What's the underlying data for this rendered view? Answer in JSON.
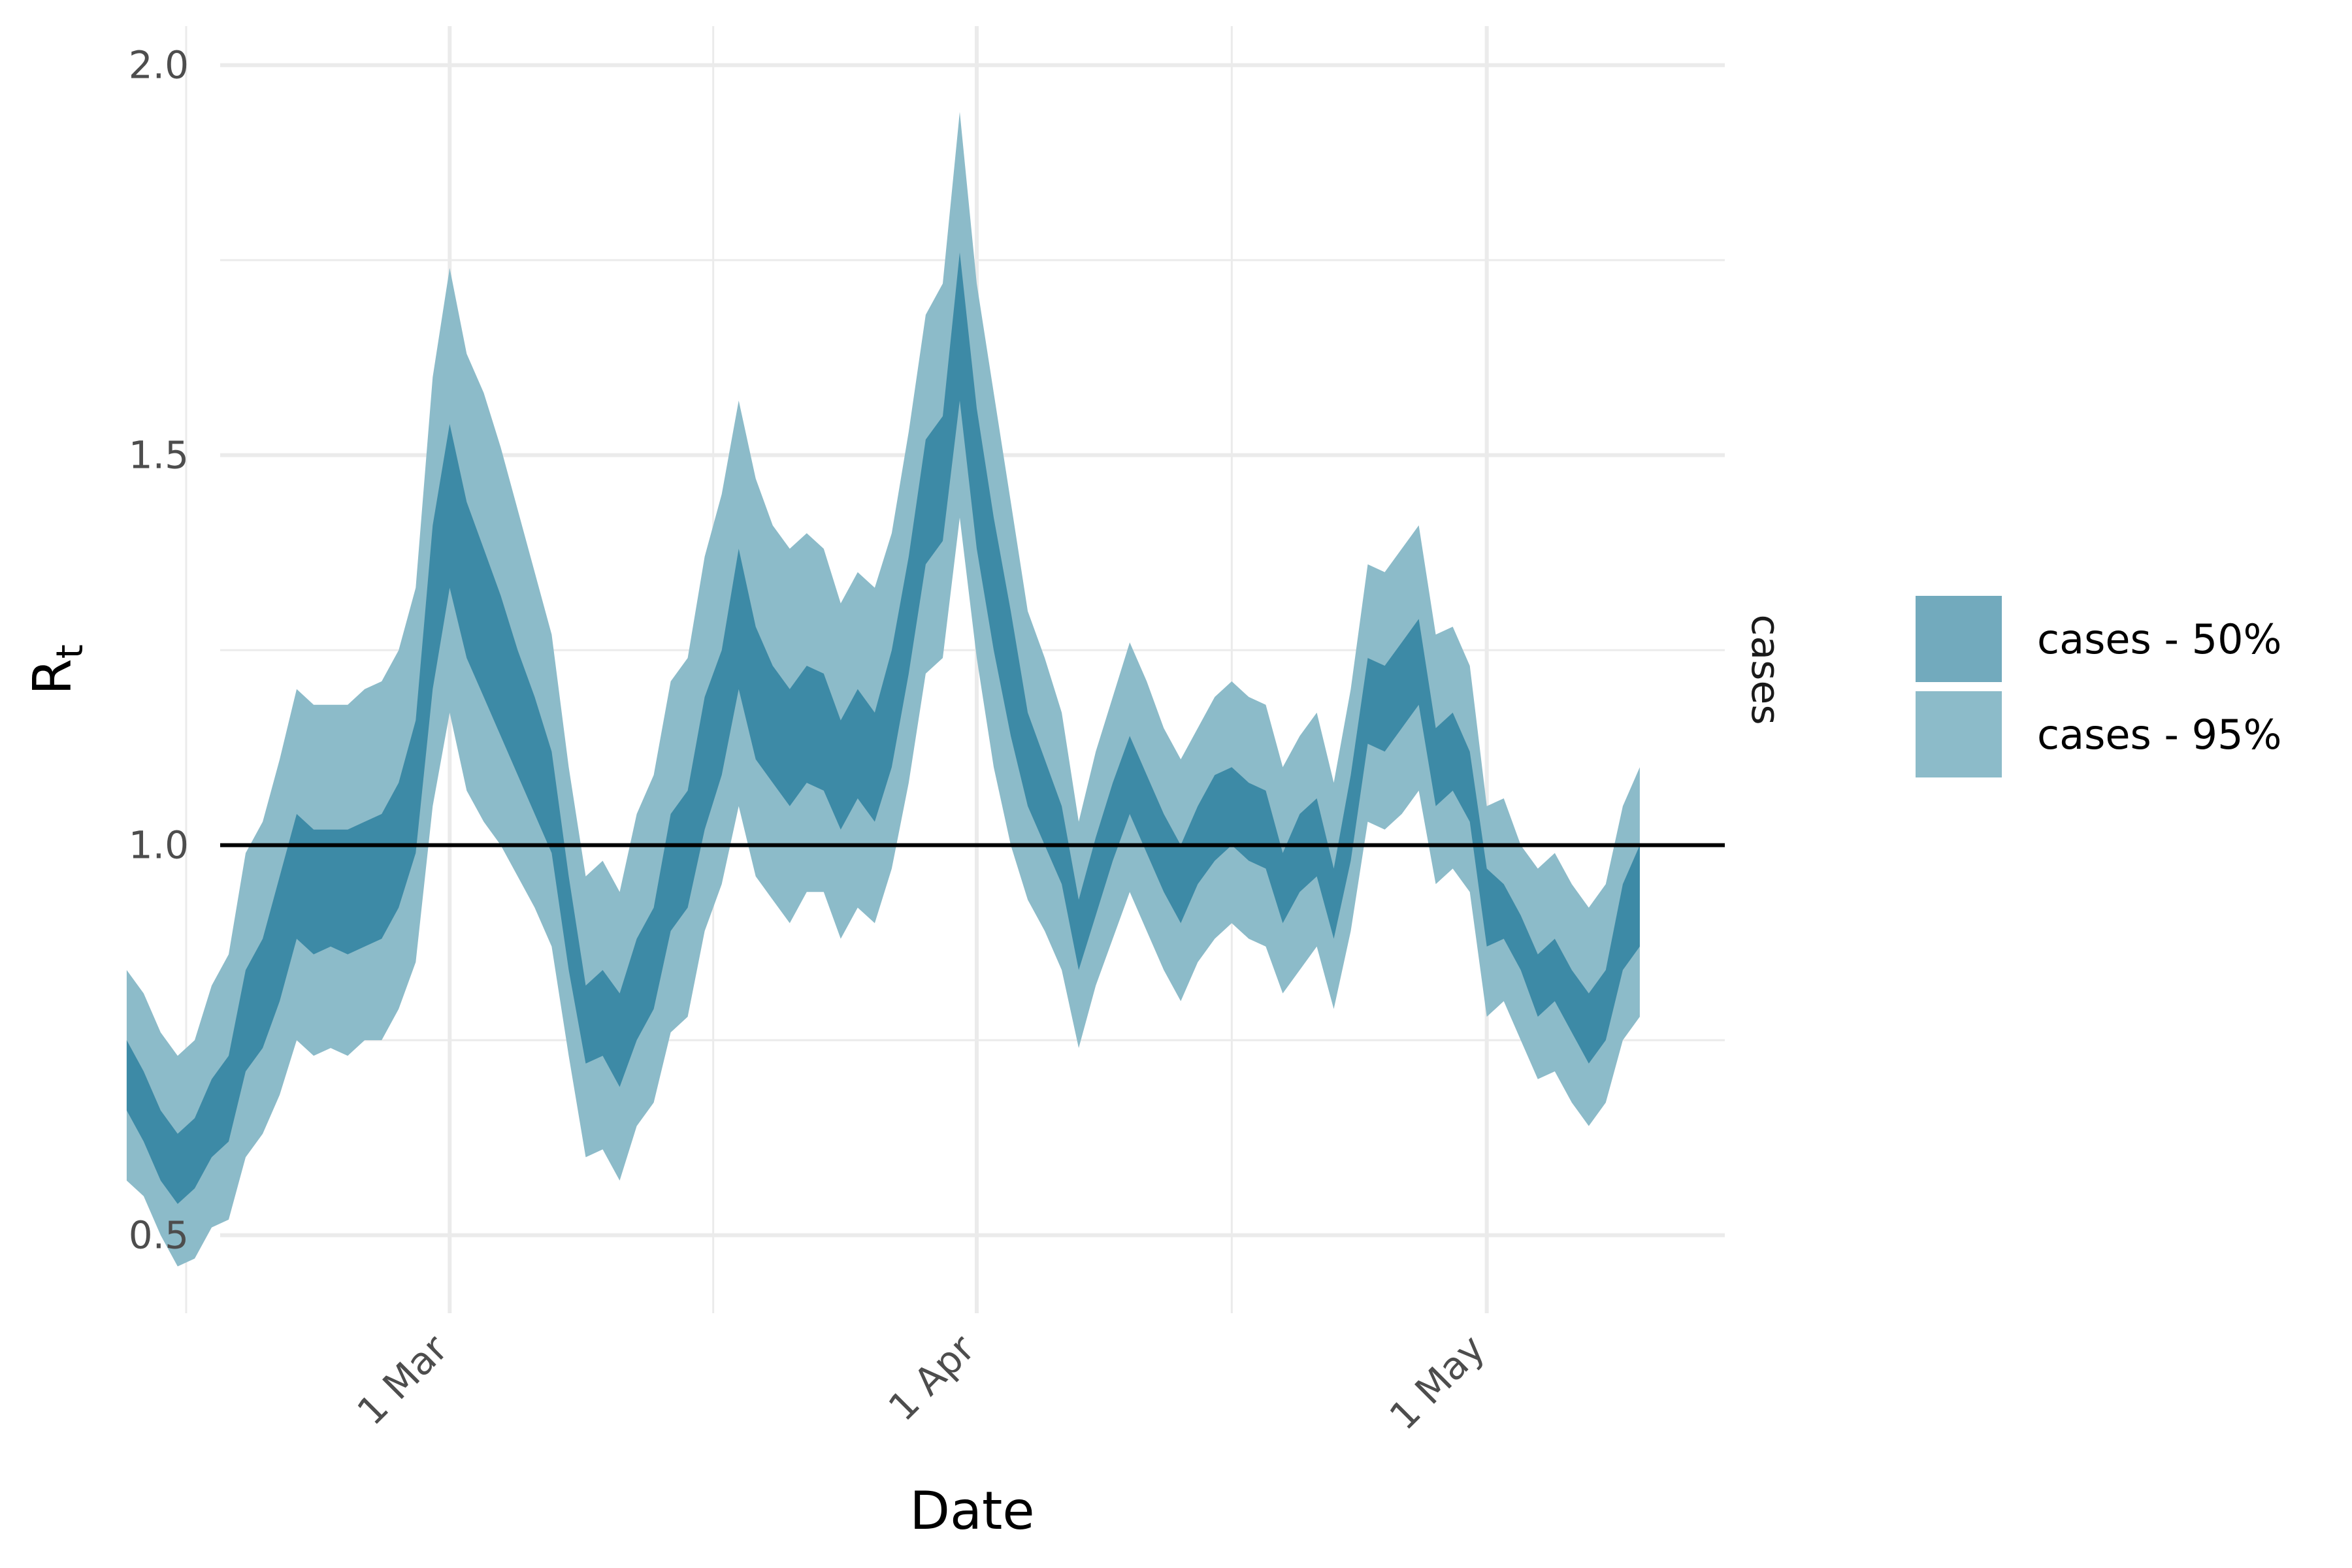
{
  "chart_data": {
    "type": "area",
    "xlabel": "Date",
    "ylabel": "R",
    "ylabel_subscript": "t",
    "facet_label": "cases",
    "ylim": [
      0.4,
      2.05
    ],
    "xlim": [
      -13.5,
      75
    ],
    "yticks": [
      0.5,
      1.0,
      1.5,
      2.0
    ],
    "ytick_labels": [
      "0.5",
      "1.0",
      "1.5",
      "2.0"
    ],
    "xticks": [
      0,
      31,
      61
    ],
    "xtick_labels": [
      "1 Mar",
      "1 Apr",
      "1 May"
    ],
    "x_minor_gridlines": [
      -15.5,
      15.5,
      46
    ],
    "y_minor_gridlines": [
      0.75,
      1.25,
      1.75
    ],
    "reference_line": 1.0,
    "colors": {
      "band50": "#3d8aa6",
      "band95": "#8cbbc9",
      "legend50": "#72aabd",
      "legend95": "#8cbbc9",
      "grid": "#ebebeb",
      "reference": "#000000"
    },
    "legend": [
      "cases - 50%",
      "cases - 95%"
    ],
    "x_day_offset_from_1_Mar": [
      -19,
      -18,
      -17,
      -16,
      -15,
      -14,
      -13,
      -12,
      -11,
      -10,
      -9,
      -8,
      -7,
      -6,
      -5,
      -4,
      -3,
      -2,
      -1,
      0,
      1,
      2,
      3,
      4,
      5,
      6,
      7,
      8,
      9,
      10,
      11,
      12,
      13,
      14,
      15,
      16,
      17,
      18,
      19,
      20,
      21,
      22,
      23,
      24,
      25,
      26,
      27,
      28,
      29,
      30,
      31,
      32,
      33,
      34,
      35,
      36,
      37,
      38,
      39,
      40,
      41,
      42,
      43,
      44,
      45,
      46,
      47,
      48,
      49,
      50,
      51,
      52,
      53,
      54,
      55,
      56,
      57,
      58,
      59,
      60,
      61,
      62,
      63,
      64,
      65,
      66,
      67,
      68,
      69,
      70
    ],
    "lower95": [
      0.57,
      0.55,
      0.5,
      0.46,
      0.47,
      0.51,
      0.52,
      0.6,
      0.63,
      0.68,
      0.75,
      0.73,
      0.74,
      0.73,
      0.75,
      0.75,
      0.79,
      0.85,
      1.05,
      1.17,
      1.07,
      1.03,
      1.0,
      0.96,
      0.92,
      0.87,
      0.73,
      0.6,
      0.61,
      0.57,
      0.64,
      0.67,
      0.76,
      0.78,
      0.89,
      0.95,
      1.05,
      0.96,
      0.93,
      0.9,
      0.94,
      0.94,
      0.88,
      0.92,
      0.9,
      0.97,
      1.08,
      1.22,
      1.24,
      1.42,
      1.24,
      1.1,
      1.0,
      0.93,
      0.89,
      0.84,
      0.74,
      0.82,
      0.88,
      0.94,
      0.89,
      0.84,
      0.8,
      0.85,
      0.88,
      0.9,
      0.88,
      0.87,
      0.81,
      0.84,
      0.87,
      0.79,
      0.89,
      1.03,
      1.02,
      1.04,
      1.07,
      0.95,
      0.97,
      0.94,
      0.78,
      0.8,
      0.75,
      0.7,
      0.71,
      0.67,
      0.64,
      0.67,
      0.75,
      0.78
    ],
    "lower50": [
      0.66,
      0.62,
      0.57,
      0.54,
      0.56,
      0.6,
      0.62,
      0.71,
      0.74,
      0.8,
      0.88,
      0.86,
      0.87,
      0.86,
      0.87,
      0.88,
      0.92,
      0.99,
      1.2,
      1.33,
      1.24,
      1.19,
      1.14,
      1.09,
      1.04,
      0.99,
      0.84,
      0.72,
      0.73,
      0.69,
      0.75,
      0.79,
      0.89,
      0.92,
      1.02,
      1.09,
      1.2,
      1.11,
      1.08,
      1.05,
      1.08,
      1.07,
      1.02,
      1.06,
      1.03,
      1.1,
      1.22,
      1.36,
      1.39,
      1.57,
      1.38,
      1.25,
      1.14,
      1.05,
      1.0,
      0.95,
      0.84,
      0.91,
      0.98,
      1.04,
      0.99,
      0.94,
      0.9,
      0.95,
      0.98,
      1.0,
      0.98,
      0.97,
      0.9,
      0.94,
      0.96,
      0.88,
      0.98,
      1.13,
      1.12,
      1.15,
      1.18,
      1.05,
      1.07,
      1.03,
      0.87,
      0.88,
      0.84,
      0.78,
      0.8,
      0.76,
      0.72,
      0.75,
      0.84,
      0.87
    ],
    "upper50": [
      0.75,
      0.71,
      0.66,
      0.63,
      0.65,
      0.7,
      0.73,
      0.84,
      0.88,
      0.96,
      1.04,
      1.02,
      1.02,
      1.02,
      1.03,
      1.04,
      1.08,
      1.16,
      1.41,
      1.54,
      1.44,
      1.38,
      1.32,
      1.25,
      1.19,
      1.12,
      0.96,
      0.82,
      0.84,
      0.81,
      0.88,
      0.92,
      1.04,
      1.07,
      1.19,
      1.25,
      1.38,
      1.28,
      1.23,
      1.2,
      1.23,
      1.22,
      1.16,
      1.2,
      1.17,
      1.25,
      1.37,
      1.52,
      1.55,
      1.76,
      1.56,
      1.42,
      1.3,
      1.17,
      1.11,
      1.05,
      0.93,
      1.01,
      1.08,
      1.14,
      1.09,
      1.04,
      1.0,
      1.05,
      1.09,
      1.1,
      1.08,
      1.07,
      0.99,
      1.04,
      1.06,
      0.97,
      1.09,
      1.24,
      1.23,
      1.26,
      1.29,
      1.15,
      1.17,
      1.12,
      0.97,
      0.95,
      0.91,
      0.86,
      0.88,
      0.84,
      0.81,
      0.84,
      0.95,
      1.0
    ],
    "upper95": [
      0.84,
      0.81,
      0.76,
      0.73,
      0.75,
      0.82,
      0.86,
      0.99,
      1.03,
      1.11,
      1.2,
      1.18,
      1.18,
      1.18,
      1.2,
      1.21,
      1.25,
      1.33,
      1.6,
      1.74,
      1.63,
      1.58,
      1.51,
      1.43,
      1.35,
      1.27,
      1.1,
      0.96,
      0.98,
      0.94,
      1.04,
      1.09,
      1.21,
      1.24,
      1.37,
      1.45,
      1.57,
      1.47,
      1.41,
      1.38,
      1.4,
      1.38,
      1.31,
      1.35,
      1.33,
      1.4,
      1.53,
      1.68,
      1.72,
      1.94,
      1.72,
      1.58,
      1.44,
      1.3,
      1.24,
      1.17,
      1.03,
      1.12,
      1.19,
      1.26,
      1.21,
      1.15,
      1.11,
      1.15,
      1.19,
      1.21,
      1.19,
      1.18,
      1.1,
      1.14,
      1.17,
      1.08,
      1.2,
      1.36,
      1.35,
      1.38,
      1.41,
      1.27,
      1.28,
      1.23,
      1.05,
      1.06,
      1.0,
      0.97,
      0.99,
      0.95,
      0.92,
      0.95,
      1.05,
      1.1
    ]
  }
}
